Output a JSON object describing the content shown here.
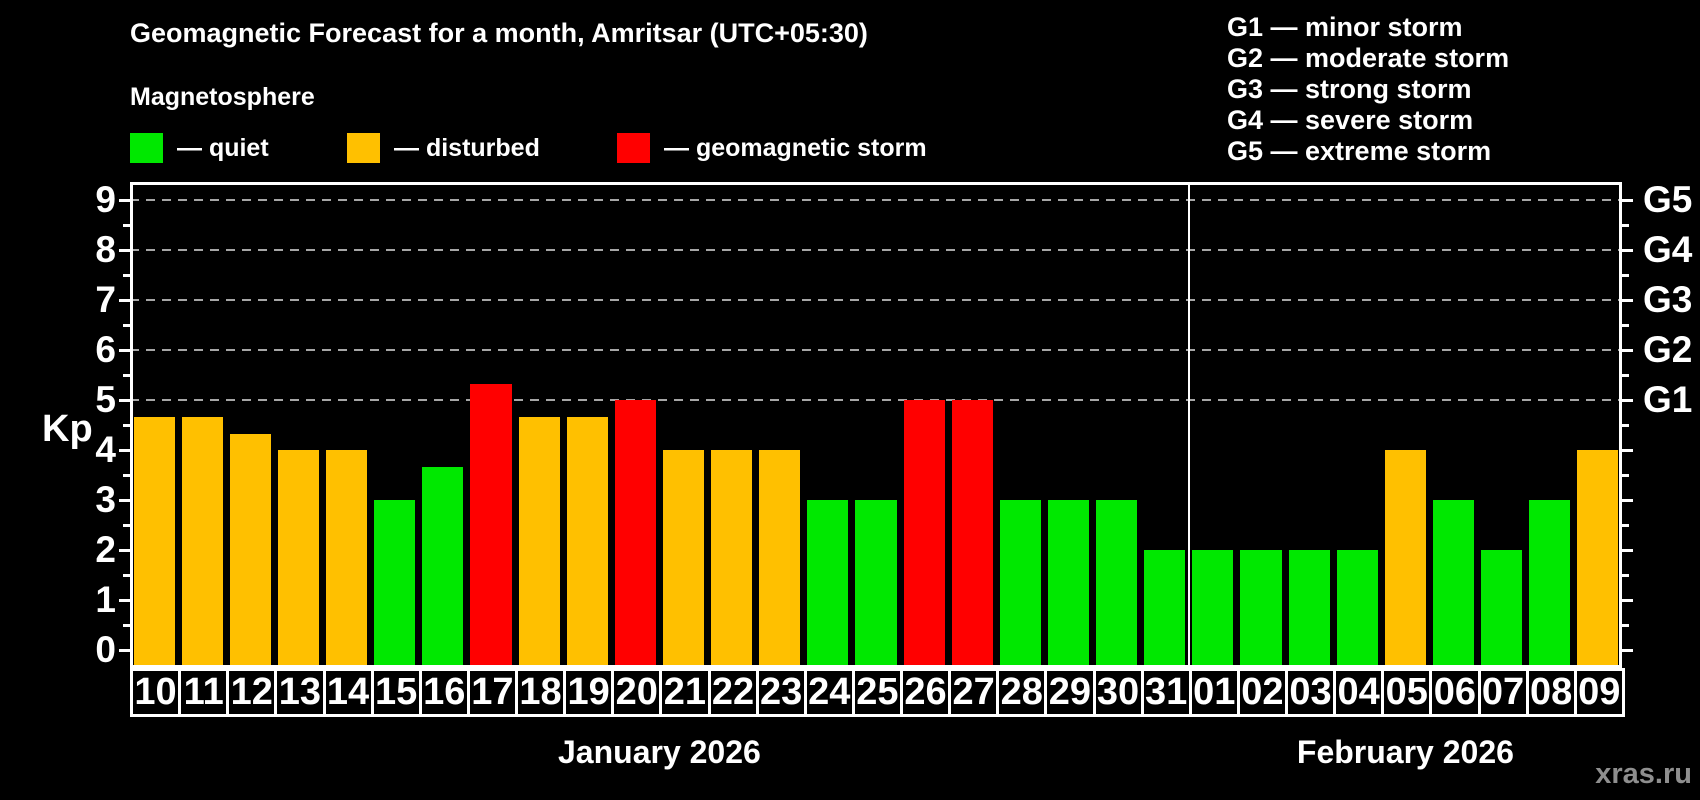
{
  "title": "Geomagnetic Forecast for a month, Amritsar (UTC+05:30)",
  "subtitle": "Magnetosphere",
  "legend": {
    "items": [
      {
        "state": "quiet",
        "label": "— quiet",
        "color": "#00e800"
      },
      {
        "state": "disturbed",
        "label": "— disturbed",
        "color": "#ffc000"
      },
      {
        "state": "storm",
        "label": "— geomagnetic storm",
        "color": "#ff0000"
      }
    ]
  },
  "g_scale_legend": {
    "items": [
      "G1 — minor storm",
      "G2 — moderate storm",
      "G3 — strong storm",
      "G4 — severe storm",
      "G5 — extreme storm"
    ]
  },
  "watermark": "xras.ru",
  "chart_data": {
    "type": "bar",
    "title": "Geomagnetic Forecast for a month, Amritsar (UTC+05:30)",
    "ylabel": "Kp",
    "ylim": [
      0,
      9
    ],
    "yticks": [
      0,
      1,
      2,
      3,
      4,
      5,
      6,
      7,
      8,
      9
    ],
    "gridlines_at": [
      5,
      6,
      7,
      8,
      9
    ],
    "grid": "dashed",
    "right_axis_labels": [
      {
        "kp": 5,
        "label": "G1"
      },
      {
        "kp": 6,
        "label": "G2"
      },
      {
        "kp": 7,
        "label": "G3"
      },
      {
        "kp": 8,
        "label": "G4"
      },
      {
        "kp": 9,
        "label": "G5"
      }
    ],
    "categories": [
      "10",
      "11",
      "12",
      "13",
      "14",
      "15",
      "16",
      "17",
      "18",
      "19",
      "20",
      "21",
      "22",
      "23",
      "24",
      "25",
      "26",
      "27",
      "28",
      "29",
      "30",
      "31",
      "01",
      "02",
      "03",
      "04",
      "05",
      "06",
      "07",
      "08",
      "09"
    ],
    "values": [
      4.67,
      4.67,
      4.33,
      4,
      4,
      3,
      3.67,
      5.33,
      4.67,
      4.67,
      5,
      4,
      4,
      4,
      3,
      3,
      5,
      5,
      3,
      3,
      3,
      2,
      2,
      2,
      2,
      2,
      4,
      3,
      2,
      3,
      4
    ],
    "states": [
      "disturbed",
      "disturbed",
      "disturbed",
      "disturbed",
      "disturbed",
      "quiet",
      "quiet",
      "storm",
      "disturbed",
      "disturbed",
      "storm",
      "disturbed",
      "disturbed",
      "disturbed",
      "quiet",
      "quiet",
      "storm",
      "storm",
      "quiet",
      "quiet",
      "quiet",
      "quiet",
      "quiet",
      "quiet",
      "quiet",
      "quiet",
      "disturbed",
      "quiet",
      "quiet",
      "quiet",
      "disturbed"
    ],
    "colors": {
      "quiet": "#00e800",
      "disturbed": "#ffc000",
      "storm": "#ff0000"
    },
    "months": [
      {
        "label": "January 2026",
        "start_index": 0,
        "end_index": 21
      },
      {
        "label": "February 2026",
        "start_index": 22,
        "end_index": 30
      }
    ]
  }
}
